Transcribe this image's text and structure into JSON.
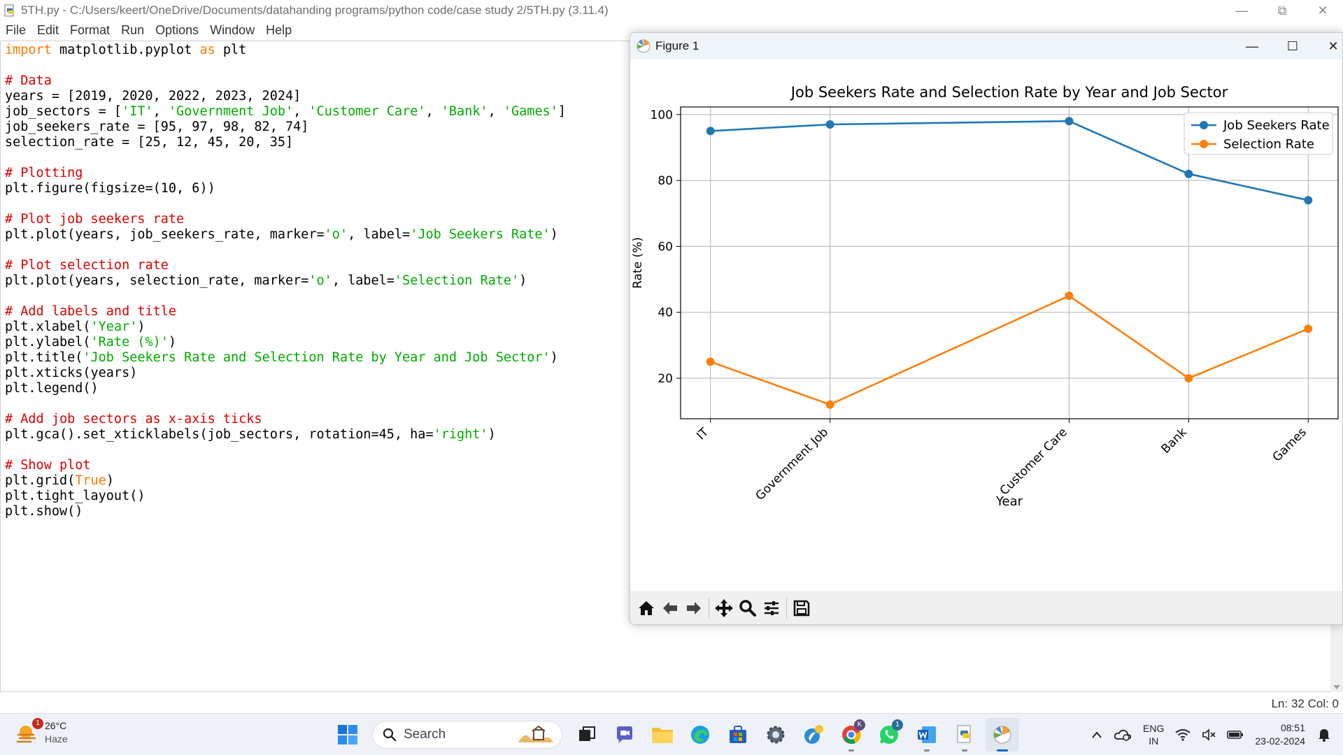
{
  "idle": {
    "title": "5TH.py - C:/Users/keert/OneDrive/Documents/datahanding programs/python code/case study 2/5TH.py (3.11.4)",
    "menu": [
      "File",
      "Edit",
      "Format",
      "Run",
      "Options",
      "Window",
      "Help"
    ],
    "status": "Ln: 32   Col: 0"
  },
  "code_lines": [
    [
      [
        "kw",
        "import"
      ],
      [
        "p",
        " matplotlib.pyplot "
      ],
      [
        "kw",
        "as"
      ],
      [
        "p",
        " plt"
      ]
    ],
    [],
    [
      [
        "cm",
        "# Data"
      ]
    ],
    [
      [
        "p",
        "years = [2019, 2020, 2022, 2023, 2024]"
      ]
    ],
    [
      [
        "p",
        "job_sectors = ["
      ],
      [
        "st",
        "'IT'"
      ],
      [
        "p",
        ", "
      ],
      [
        "st",
        "'Government Job'"
      ],
      [
        "p",
        ", "
      ],
      [
        "st",
        "'Customer Care'"
      ],
      [
        "p",
        ", "
      ],
      [
        "st",
        "'Bank'"
      ],
      [
        "p",
        ", "
      ],
      [
        "st",
        "'Games'"
      ],
      [
        "p",
        "]"
      ]
    ],
    [
      [
        "p",
        "job_seekers_rate = [95, 97, 98, 82, 74]"
      ]
    ],
    [
      [
        "p",
        "selection_rate = [25, 12, 45, 20, 35]"
      ]
    ],
    [],
    [
      [
        "cm",
        "# Plotting"
      ]
    ],
    [
      [
        "p",
        "plt.figure(figsize=(10, 6))"
      ]
    ],
    [],
    [
      [
        "cm",
        "# Plot job seekers rate"
      ]
    ],
    [
      [
        "p",
        "plt.plot(years, job_seekers_rate, marker="
      ],
      [
        "st",
        "'o'"
      ],
      [
        "p",
        ", label="
      ],
      [
        "st",
        "'Job Seekers Rate'"
      ],
      [
        "p",
        ")"
      ]
    ],
    [],
    [
      [
        "cm",
        "# Plot selection rate"
      ]
    ],
    [
      [
        "p",
        "plt.plot(years, selection_rate, marker="
      ],
      [
        "st",
        "'o'"
      ],
      [
        "p",
        ", label="
      ],
      [
        "st",
        "'Selection Rate'"
      ],
      [
        "p",
        ")"
      ]
    ],
    [],
    [
      [
        "cm",
        "# Add labels and title"
      ]
    ],
    [
      [
        "p",
        "plt.xlabel("
      ],
      [
        "st",
        "'Year'"
      ],
      [
        "p",
        ")"
      ]
    ],
    [
      [
        "p",
        "plt.ylabel("
      ],
      [
        "st",
        "'Rate (%)'"
      ],
      [
        "p",
        ")"
      ]
    ],
    [
      [
        "p",
        "plt.title("
      ],
      [
        "st",
        "'Job Seekers Rate and Selection Rate by Year and Job Sector'"
      ],
      [
        "p",
        ")"
      ]
    ],
    [
      [
        "p",
        "plt.xticks(years)"
      ]
    ],
    [
      [
        "p",
        "plt.legend()"
      ]
    ],
    [],
    [
      [
        "cm",
        "# Add job sectors as x-axis ticks"
      ]
    ],
    [
      [
        "p",
        "plt.gca().set_xticklabels(job_sectors, rotation=45, ha="
      ],
      [
        "st",
        "'right'"
      ],
      [
        "p",
        ")"
      ]
    ],
    [],
    [
      [
        "cm",
        "# Show plot"
      ]
    ],
    [
      [
        "p",
        "plt.grid("
      ],
      [
        "kw",
        "True"
      ],
      [
        "p",
        ")"
      ]
    ],
    [
      [
        "p",
        "plt.tight_layout()"
      ]
    ],
    [
      [
        "p",
        "plt.show()"
      ]
    ]
  ],
  "figure": {
    "window_title": "Figure 1",
    "toolbar_buttons": [
      "home-icon",
      "back-icon",
      "forward-icon",
      "pan-icon",
      "zoom-icon",
      "configure-subplots-icon",
      "save-icon"
    ]
  },
  "chart_data": {
    "type": "line",
    "title": "Job Seekers Rate and Selection Rate by Year and Job Sector",
    "xlabel": "Year",
    "ylabel": "Rate (%)",
    "x": [
      2019,
      2020,
      2022,
      2023,
      2024
    ],
    "tick_labels": [
      "IT",
      "Government Job",
      "Customer Care",
      "Bank",
      "Games"
    ],
    "xlim": [
      2018.75,
      2024.25
    ],
    "ylim": [
      7.7,
      102.3
    ],
    "yticks": [
      20,
      40,
      60,
      80,
      100
    ],
    "grid": true,
    "legend_position": "top-right",
    "series": [
      {
        "name": "Job Seekers Rate",
        "color": "#1f77b4",
        "values": [
          95,
          97,
          98,
          82,
          74
        ]
      },
      {
        "name": "Selection Rate",
        "color": "#ff7f0e",
        "values": [
          25,
          12,
          45,
          20,
          35
        ]
      }
    ]
  },
  "taskbar": {
    "weather_temp": "26°C",
    "weather_cond": "Haze",
    "weather_badge": "1",
    "search_label": "Search",
    "lang_1": "ENG",
    "lang_2": "IN",
    "time": "08:51",
    "date": "23-02-2024",
    "chrome_badge": "K",
    "whatsapp_badge": "1"
  }
}
